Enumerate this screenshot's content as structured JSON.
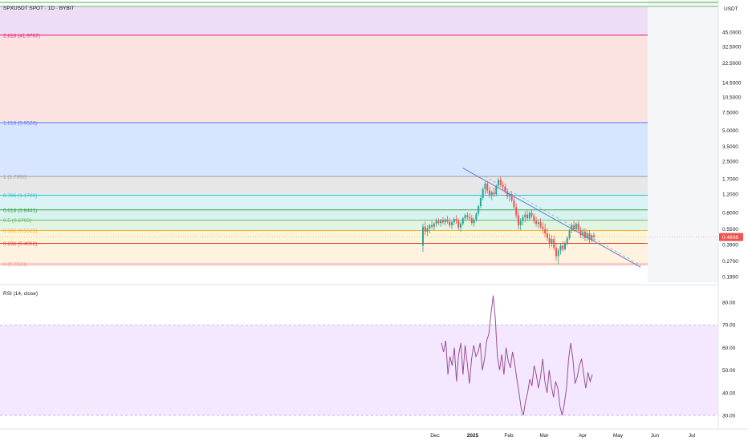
{
  "header": {
    "symbol": "SPXUSDT SPOT · 1D · BYBIT",
    "currency": "USDT"
  },
  "colors": {
    "up": "#26a69a",
    "down": "#ef5350",
    "trendline": "#5b7fd6",
    "rsi_line": "#9c4f96",
    "rsi_band": "#7e57c2",
    "price_badge": "#ef5350"
  },
  "chart_data": [
    {
      "type": "candlestick",
      "title": "",
      "scale": "log",
      "ylim": [
        0.19,
        60
      ],
      "price_axis_ticks": [
        "45.0000",
        "32.5000",
        "22.5000",
        "14.5000",
        "10.5000",
        "7.5000",
        "5.0000",
        "3.5000",
        "2.5000",
        "1.7000",
        "1.2000",
        "0.8000",
        "0.5500",
        "0.3900",
        "0.2700",
        "0.1900"
      ],
      "price_axis_values": [
        45,
        32.5,
        22.5,
        14.5,
        10.5,
        7.5,
        5,
        3.5,
        2.5,
        1.7,
        1.2,
        0.8,
        0.55,
        0.39,
        0.27,
        0.19
      ],
      "time_axis_ticks": [
        "Dec",
        "2025",
        "Feb",
        "Mar",
        "Apr",
        "May",
        "Jun",
        "Jul"
      ],
      "last_price": "0.4608",
      "last_price_value": 0.4608,
      "fib_levels": [
        {
          "label": "0 (0.2524)",
          "value": 0.2524,
          "color": "#ef9a9a"
        },
        {
          "label": "0.236 (0.4002)",
          "value": 0.4002,
          "color": "#e53935"
        },
        {
          "label": "0.382 (0.5323)",
          "value": 0.5323,
          "color": "#f5b041"
        },
        {
          "label": "0.5 (0.6703)",
          "value": 0.6703,
          "color": "#66bb6a"
        },
        {
          "label": "0.618 (0.8441)",
          "value": 0.8441,
          "color": "#43a047"
        },
        {
          "label": "0.786 (1.1720)",
          "value": 1.172,
          "color": "#26c6da"
        },
        {
          "label": "1 (1.7802)",
          "value": 1.7802,
          "color": "#9e9e9e"
        },
        {
          "label": "1.618 (5.9528)",
          "value": 5.9528,
          "color": "#5c7cfa"
        },
        {
          "label": "2.618 (41.9787)",
          "value": 41.9787,
          "color": "#e91e63"
        }
      ],
      "fib_zone_fills": [
        "#fce4e4",
        "#fff1dc",
        "#fbf6d6",
        "#e0f3e0",
        "#d6f2ee",
        "#d7f1f3",
        "#e6e6e6",
        "#d6e4ff",
        "#fde0e0",
        "#ecdcf5"
      ],
      "candles": [
        {
          "o": 0.38,
          "h": 0.62,
          "l": 0.33,
          "c": 0.58
        },
        {
          "o": 0.58,
          "h": 0.65,
          "l": 0.48,
          "c": 0.52
        },
        {
          "o": 0.52,
          "h": 0.6,
          "l": 0.47,
          "c": 0.56
        },
        {
          "o": 0.56,
          "h": 0.62,
          "l": 0.5,
          "c": 0.6
        },
        {
          "o": 0.6,
          "h": 0.66,
          "l": 0.55,
          "c": 0.58
        },
        {
          "o": 0.58,
          "h": 0.64,
          "l": 0.53,
          "c": 0.62
        },
        {
          "o": 0.62,
          "h": 0.7,
          "l": 0.58,
          "c": 0.66
        },
        {
          "o": 0.66,
          "h": 0.7,
          "l": 0.6,
          "c": 0.63
        },
        {
          "o": 0.63,
          "h": 0.69,
          "l": 0.58,
          "c": 0.67
        },
        {
          "o": 0.67,
          "h": 0.72,
          "l": 0.61,
          "c": 0.64
        },
        {
          "o": 0.64,
          "h": 0.7,
          "l": 0.6,
          "c": 0.68
        },
        {
          "o": 0.68,
          "h": 0.74,
          "l": 0.62,
          "c": 0.65
        },
        {
          "o": 0.65,
          "h": 0.7,
          "l": 0.57,
          "c": 0.6
        },
        {
          "o": 0.6,
          "h": 0.66,
          "l": 0.55,
          "c": 0.64
        },
        {
          "o": 0.64,
          "h": 0.71,
          "l": 0.6,
          "c": 0.69
        },
        {
          "o": 0.69,
          "h": 0.75,
          "l": 0.62,
          "c": 0.66
        },
        {
          "o": 0.66,
          "h": 0.7,
          "l": 0.54,
          "c": 0.57
        },
        {
          "o": 0.57,
          "h": 0.65,
          "l": 0.52,
          "c": 0.62
        },
        {
          "o": 0.62,
          "h": 0.72,
          "l": 0.59,
          "c": 0.7
        },
        {
          "o": 0.7,
          "h": 0.78,
          "l": 0.66,
          "c": 0.75
        },
        {
          "o": 0.75,
          "h": 0.8,
          "l": 0.68,
          "c": 0.72
        },
        {
          "o": 0.72,
          "h": 0.78,
          "l": 0.66,
          "c": 0.7
        },
        {
          "o": 0.7,
          "h": 0.76,
          "l": 0.6,
          "c": 0.63
        },
        {
          "o": 0.63,
          "h": 0.71,
          "l": 0.58,
          "c": 0.68
        },
        {
          "o": 0.68,
          "h": 0.8,
          "l": 0.65,
          "c": 0.78
        },
        {
          "o": 0.78,
          "h": 0.95,
          "l": 0.74,
          "c": 0.92
        },
        {
          "o": 0.92,
          "h": 1.15,
          "l": 0.88,
          "c": 1.1
        },
        {
          "o": 1.1,
          "h": 1.4,
          "l": 1.05,
          "c": 1.35
        },
        {
          "o": 1.35,
          "h": 1.6,
          "l": 1.2,
          "c": 1.52
        },
        {
          "o": 1.52,
          "h": 1.62,
          "l": 1.22,
          "c": 1.3
        },
        {
          "o": 1.3,
          "h": 1.42,
          "l": 1.1,
          "c": 1.18
        },
        {
          "o": 1.18,
          "h": 1.3,
          "l": 1.05,
          "c": 1.25
        },
        {
          "o": 1.25,
          "h": 1.38,
          "l": 1.12,
          "c": 1.2
        },
        {
          "o": 1.2,
          "h": 1.5,
          "l": 1.15,
          "c": 1.45
        },
        {
          "o": 1.45,
          "h": 1.72,
          "l": 1.38,
          "c": 1.65
        },
        {
          "o": 1.65,
          "h": 1.78,
          "l": 1.4,
          "c": 1.48
        },
        {
          "o": 1.48,
          "h": 1.6,
          "l": 1.3,
          "c": 1.42
        },
        {
          "o": 1.42,
          "h": 1.52,
          "l": 1.22,
          "c": 1.28
        },
        {
          "o": 1.28,
          "h": 1.36,
          "l": 1.08,
          "c": 1.15
        },
        {
          "o": 1.15,
          "h": 1.26,
          "l": 1.02,
          "c": 1.2
        },
        {
          "o": 1.2,
          "h": 1.28,
          "l": 1.0,
          "c": 1.05
        },
        {
          "o": 1.05,
          "h": 1.12,
          "l": 0.86,
          "c": 0.9
        },
        {
          "o": 0.9,
          "h": 0.98,
          "l": 0.7,
          "c": 0.75
        },
        {
          "o": 0.75,
          "h": 0.82,
          "l": 0.55,
          "c": 0.6
        },
        {
          "o": 0.6,
          "h": 0.7,
          "l": 0.54,
          "c": 0.66
        },
        {
          "o": 0.66,
          "h": 0.76,
          "l": 0.6,
          "c": 0.72
        },
        {
          "o": 0.72,
          "h": 0.82,
          "l": 0.64,
          "c": 0.76
        },
        {
          "o": 0.76,
          "h": 0.84,
          "l": 0.66,
          "c": 0.7
        },
        {
          "o": 0.7,
          "h": 0.82,
          "l": 0.66,
          "c": 0.79
        },
        {
          "o": 0.79,
          "h": 0.85,
          "l": 0.7,
          "c": 0.74
        },
        {
          "o": 0.74,
          "h": 0.78,
          "l": 0.62,
          "c": 0.66
        },
        {
          "o": 0.66,
          "h": 0.72,
          "l": 0.58,
          "c": 0.62
        },
        {
          "o": 0.62,
          "h": 0.68,
          "l": 0.56,
          "c": 0.64
        },
        {
          "o": 0.64,
          "h": 0.7,
          "l": 0.55,
          "c": 0.58
        },
        {
          "o": 0.58,
          "h": 0.64,
          "l": 0.5,
          "c": 0.55
        },
        {
          "o": 0.55,
          "h": 0.62,
          "l": 0.46,
          "c": 0.5
        },
        {
          "o": 0.5,
          "h": 0.56,
          "l": 0.42,
          "c": 0.45
        },
        {
          "o": 0.45,
          "h": 0.5,
          "l": 0.36,
          "c": 0.4
        },
        {
          "o": 0.4,
          "h": 0.48,
          "l": 0.37,
          "c": 0.44
        },
        {
          "o": 0.44,
          "h": 0.48,
          "l": 0.34,
          "c": 0.36
        },
        {
          "o": 0.36,
          "h": 0.4,
          "l": 0.27,
          "c": 0.3
        },
        {
          "o": 0.3,
          "h": 0.36,
          "l": 0.25,
          "c": 0.34
        },
        {
          "o": 0.34,
          "h": 0.4,
          "l": 0.31,
          "c": 0.38
        },
        {
          "o": 0.38,
          "h": 0.42,
          "l": 0.33,
          "c": 0.35
        },
        {
          "o": 0.35,
          "h": 0.42,
          "l": 0.34,
          "c": 0.4
        },
        {
          "o": 0.4,
          "h": 0.47,
          "l": 0.38,
          "c": 0.45
        },
        {
          "o": 0.45,
          "h": 0.55,
          "l": 0.43,
          "c": 0.53
        },
        {
          "o": 0.53,
          "h": 0.63,
          "l": 0.5,
          "c": 0.6
        },
        {
          "o": 0.6,
          "h": 0.66,
          "l": 0.52,
          "c": 0.55
        },
        {
          "o": 0.55,
          "h": 0.64,
          "l": 0.52,
          "c": 0.62
        },
        {
          "o": 0.62,
          "h": 0.66,
          "l": 0.52,
          "c": 0.54
        },
        {
          "o": 0.54,
          "h": 0.58,
          "l": 0.45,
          "c": 0.48
        },
        {
          "o": 0.48,
          "h": 0.56,
          "l": 0.44,
          "c": 0.52
        },
        {
          "o": 0.52,
          "h": 0.56,
          "l": 0.42,
          "c": 0.45
        },
        {
          "o": 0.45,
          "h": 0.54,
          "l": 0.42,
          "c": 0.5
        },
        {
          "o": 0.5,
          "h": 0.54,
          "l": 0.4,
          "c": 0.43
        },
        {
          "o": 0.43,
          "h": 0.5,
          "l": 0.41,
          "c": 0.48
        },
        {
          "o": 0.48,
          "h": 0.51,
          "l": 0.42,
          "c": 0.4608
        }
      ],
      "trendline": {
        "start": {
          "candle": 18,
          "value": 2.15
        },
        "end": {
          "candle": 98,
          "value": 0.235
        }
      },
      "dashed_trendline": {
        "start": {
          "candle": 28,
          "value": 1.78
        },
        "end": {
          "candle": 98,
          "value": 0.245
        }
      }
    },
    {
      "type": "line",
      "title": "RSI (14, close)",
      "ylim": [
        27,
        85
      ],
      "y_ticks": [
        "80.00",
        "70.00",
        "60.00",
        "50.00",
        "40.00",
        "30.00"
      ],
      "y_tick_values": [
        80,
        70,
        60,
        50,
        40,
        30
      ],
      "overbought": 70,
      "oversold": 30,
      "values": [
        62,
        58,
        63,
        48,
        56,
        52,
        60,
        45,
        57,
        62,
        48,
        61,
        53,
        44,
        55,
        61,
        56,
        58,
        62,
        50,
        55,
        63,
        66,
        75,
        83,
        73,
        56,
        50,
        57,
        48,
        60,
        54,
        51,
        58,
        53,
        46,
        40,
        33,
        30,
        36,
        40,
        46,
        43,
        52,
        48,
        42,
        47,
        55,
        45,
        40,
        50,
        43,
        38,
        45,
        42,
        34,
        30,
        35,
        42,
        55,
        62,
        55,
        44,
        47,
        52,
        55,
        48,
        42,
        49,
        45,
        48
      ]
    }
  ]
}
